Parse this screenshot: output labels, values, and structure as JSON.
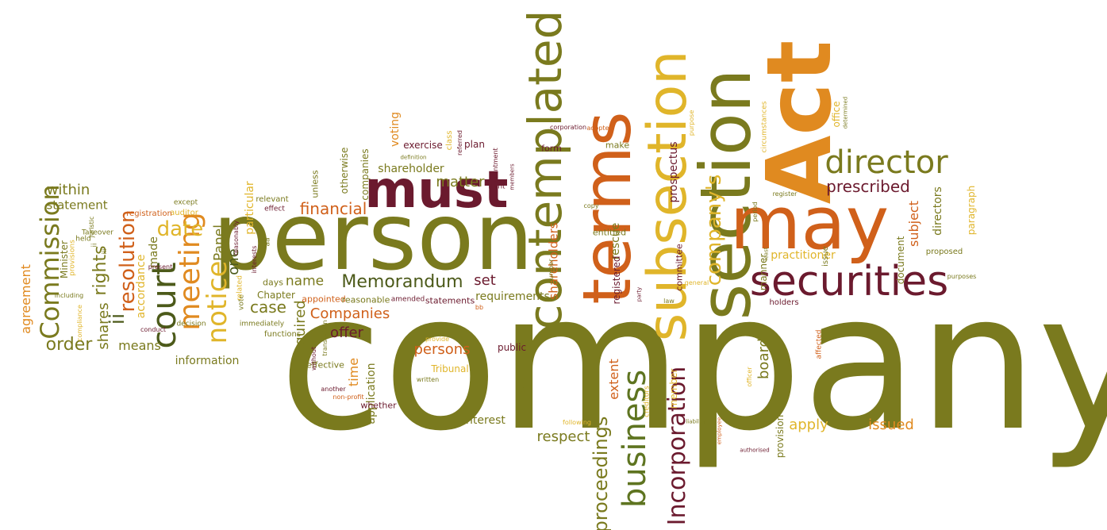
{
  "colors": {
    "olive": "#7a7a1e",
    "green": "#5e7420",
    "darkgreen": "#4c5a1a",
    "maroon": "#6b1a2e",
    "orange": "#d0601a",
    "amber": "#e08a20",
    "gold": "#e0b52a",
    "brown": "#8b3a1a"
  },
  "words": [
    {
      "text": "company",
      "color": "olive"
    },
    {
      "text": "person",
      "color": "olive"
    },
    {
      "text": "section",
      "color": "olive"
    },
    {
      "text": "Act",
      "color": "amber"
    },
    {
      "text": "may",
      "color": "orange"
    },
    {
      "text": "terms",
      "color": "orange"
    },
    {
      "text": "subsection",
      "color": "gold"
    },
    {
      "text": "contemplated",
      "color": "olive"
    },
    {
      "text": "must",
      "color": "maroon"
    },
    {
      "text": "securities",
      "color": "maroon"
    },
    {
      "text": "director",
      "color": "olive"
    },
    {
      "text": "business",
      "color": "green"
    },
    {
      "text": "Incorporation",
      "color": "maroon"
    },
    {
      "text": "proceedings",
      "color": "olive"
    },
    {
      "text": "company's",
      "color": "gold"
    },
    {
      "text": "court",
      "color": "darkgreen"
    },
    {
      "text": "meeting",
      "color": "amber"
    },
    {
      "text": "notice",
      "color": "gold"
    },
    {
      "text": "Commission",
      "color": "olive"
    },
    {
      "text": "Memorandum",
      "color": "darkgreen"
    },
    {
      "text": "resolution",
      "color": "orange"
    },
    {
      "text": "prescribed",
      "color": "maroon"
    },
    {
      "text": "financial",
      "color": "orange"
    },
    {
      "text": "date",
      "color": "gold"
    },
    {
      "text": "order",
      "color": "olive"
    },
    {
      "text": "ii",
      "color": "darkgreen"
    },
    {
      "text": "rights",
      "color": "olive"
    },
    {
      "text": "shares",
      "color": "olive"
    },
    {
      "text": "within",
      "color": "olive"
    },
    {
      "text": "statement",
      "color": "olive"
    },
    {
      "text": "agreement",
      "color": "amber"
    },
    {
      "text": "means",
      "color": "olive"
    },
    {
      "text": "respect",
      "color": "olive"
    },
    {
      "text": "apply",
      "color": "gold"
    },
    {
      "text": "issued",
      "color": "amber"
    },
    {
      "text": "persons",
      "color": "orange"
    },
    {
      "text": "offer",
      "color": "maroon"
    },
    {
      "text": "Companies",
      "color": "orange"
    },
    {
      "text": "name",
      "color": "olive"
    },
    {
      "text": "case",
      "color": "olive"
    },
    {
      "text": "required",
      "color": "olive"
    },
    {
      "text": "Panel",
      "color": "olive"
    },
    {
      "text": "one",
      "color": "darkgreen"
    },
    {
      "text": "made",
      "color": "olive"
    },
    {
      "text": "accordance",
      "color": "gold"
    },
    {
      "text": "information",
      "color": "olive"
    },
    {
      "text": "Chapter",
      "color": "olive"
    },
    {
      "text": "days",
      "color": "olive"
    },
    {
      "text": "set",
      "color": "maroon"
    },
    {
      "text": "requirements",
      "color": "olive"
    },
    {
      "text": "statements",
      "color": "maroon"
    },
    {
      "text": "matter",
      "color": "olive"
    },
    {
      "text": "exercise",
      "color": "maroon"
    },
    {
      "text": "plan",
      "color": "maroon"
    },
    {
      "text": "shareholder",
      "color": "olive"
    },
    {
      "text": "shareholders",
      "color": "orange"
    },
    {
      "text": "rescue",
      "color": "olive"
    },
    {
      "text": "prospectus",
      "color": "maroon"
    },
    {
      "text": "directors",
      "color": "olive"
    },
    {
      "text": "subject",
      "color": "orange"
    },
    {
      "text": "board",
      "color": "olive"
    },
    {
      "text": "extent",
      "color": "orange"
    },
    {
      "text": "member",
      "color": "gold"
    },
    {
      "text": "Part",
      "color": "olive"
    },
    {
      "text": "public",
      "color": "maroon"
    },
    {
      "text": "time",
      "color": "amber"
    },
    {
      "text": "application",
      "color": "olive"
    },
    {
      "text": "Tribunal",
      "color": "gold"
    },
    {
      "text": "interest",
      "color": "olive"
    },
    {
      "text": "provision",
      "color": "olive"
    },
    {
      "text": "practitioner",
      "color": "gold"
    },
    {
      "text": "holders",
      "color": "maroon"
    },
    {
      "text": "manner",
      "color": "olive"
    },
    {
      "text": "proposed",
      "color": "olive"
    },
    {
      "text": "paragraph",
      "color": "gold"
    },
    {
      "text": "document",
      "color": "olive"
    },
    {
      "text": "office",
      "color": "gold"
    },
    {
      "text": "effective",
      "color": "olive"
    },
    {
      "text": "whether",
      "color": "maroon"
    },
    {
      "text": "voting",
      "color": "amber"
    },
    {
      "text": "companies",
      "color": "olive"
    },
    {
      "text": "otherwise",
      "color": "olive"
    },
    {
      "text": "unless",
      "color": "olive"
    },
    {
      "text": "entitled",
      "color": "olive"
    },
    {
      "text": "registered",
      "color": "maroon"
    },
    {
      "text": "committee",
      "color": "maroon"
    },
    {
      "text": "make",
      "color": "olive"
    },
    {
      "text": "form",
      "color": "maroon"
    },
    {
      "text": "class",
      "color": "gold"
    },
    {
      "text": "appointed",
      "color": "orange"
    },
    {
      "text": "reasonable",
      "color": "olive"
    },
    {
      "text": "amended",
      "color": "maroon"
    },
    {
      "text": "particular",
      "color": "gold"
    },
    {
      "text": "relevant",
      "color": "olive"
    },
    {
      "text": "effect",
      "color": "maroon"
    },
    {
      "text": "except",
      "color": "olive"
    },
    {
      "text": "auditor",
      "color": "gold"
    },
    {
      "text": "registration",
      "color": "orange"
    },
    {
      "text": "Takeover",
      "color": "olive"
    },
    {
      "text": "held",
      "color": "olive"
    },
    {
      "text": "Minister",
      "color": "olive"
    },
    {
      "text": "provisions",
      "color": "gold"
    },
    {
      "text": "juristic",
      "color": "olive"
    },
    {
      "text": "ii",
      "color": "olive"
    },
    {
      "text": "iii",
      "color": "olive"
    },
    {
      "text": "present",
      "color": "maroon"
    },
    {
      "text": "conduct",
      "color": "maroon"
    },
    {
      "text": "decision",
      "color": "olive"
    },
    {
      "text": "vote",
      "color": "olive"
    },
    {
      "text": "related",
      "color": "gold"
    },
    {
      "text": "immediately",
      "color": "olive"
    },
    {
      "text": "functions",
      "color": "olive"
    },
    {
      "text": "including",
      "color": "olive"
    },
    {
      "text": "compliance",
      "color": "gold"
    },
    {
      "text": "interests",
      "color": "maroon"
    },
    {
      "text": "reasonably",
      "color": "maroon"
    },
    {
      "text": "aa",
      "color": "olive"
    },
    {
      "text": "without",
      "color": "maroon"
    },
    {
      "text": "transaction",
      "color": "olive"
    },
    {
      "text": "another",
      "color": "maroon"
    },
    {
      "text": "non-profit",
      "color": "orange"
    },
    {
      "text": "written",
      "color": "olive"
    },
    {
      "text": "provide",
      "color": "gold"
    },
    {
      "text": "bb",
      "color": "orange"
    },
    {
      "text": "definition",
      "color": "olive"
    },
    {
      "text": "referred",
      "color": "maroon"
    },
    {
      "text": "appointment",
      "color": "maroon"
    },
    {
      "text": "members",
      "color": "maroon"
    },
    {
      "text": "right",
      "color": "maroon"
    },
    {
      "text": "corporation",
      "color": "maroon"
    },
    {
      "text": "adopted",
      "color": "orange"
    },
    {
      "text": "number",
      "color": "olive"
    },
    {
      "text": "copy",
      "color": "olive"
    },
    {
      "text": "creditors",
      "color": "gold"
    },
    {
      "text": "following",
      "color": "gold"
    },
    {
      "text": "liability",
      "color": "olive"
    },
    {
      "text": "employee",
      "color": "orange"
    },
    {
      "text": "authorised",
      "color": "maroon"
    },
    {
      "text": "general",
      "color": "gold"
    },
    {
      "text": "party",
      "color": "maroon"
    },
    {
      "text": "law",
      "color": "olive"
    },
    {
      "text": "officer",
      "color": "gold"
    },
    {
      "text": "affected",
      "color": "orange"
    },
    {
      "text": "period",
      "color": "olive"
    },
    {
      "text": "least",
      "color": "olive"
    },
    {
      "text": "issue",
      "color": "olive"
    },
    {
      "text": "register",
      "color": "olive"
    },
    {
      "text": "circumstances",
      "color": "gold"
    },
    {
      "text": "determined",
      "color": "olive"
    },
    {
      "text": "purposes",
      "color": "olive"
    },
    {
      "text": "purpose",
      "color": "gold"
    }
  ]
}
